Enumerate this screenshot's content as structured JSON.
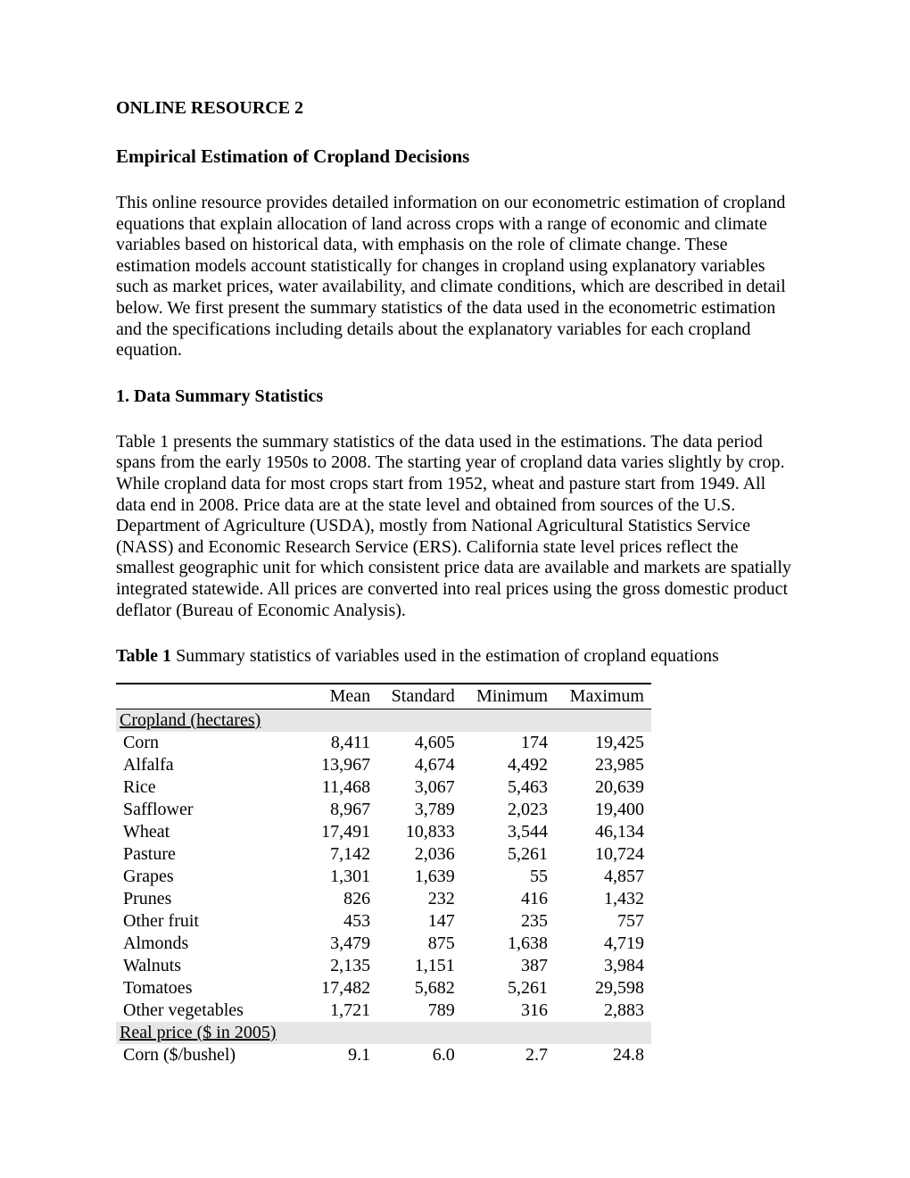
{
  "header": "ONLINE RESOURCE 2",
  "title": "Empirical Estimation of Cropland Decisions",
  "para1": "This online resource provides detailed information on our econometric estimation of cropland equations that explain allocation of land across crops with a range of economic and climate variables based on historical data, with emphasis on the role of climate change. These estimation models account statistically for changes in cropland using explanatory variables such as market prices, water availability, and climate conditions, which are described in detail below. We first present the summary statistics of the data used in the econometric estimation and the specifications including details about the explanatory variables for each cropland equation.",
  "section1_heading": "1. Data Summary Statistics",
  "para2": "Table 1 presents the summary statistics of the data used in the estimations.  The data period spans from the early 1950s to 2008. The starting year of cropland data varies slightly by crop. While cropland data for most crops start from 1952, wheat and pasture start from 1949.  All data end in 2008.  Price data are at the state level and obtained from sources of the U.S. Department of Agriculture (USDA), mostly from National Agricultural Statistics Service (NASS) and Economic Research Service (ERS).  California state level prices reflect the smallest geographic unit for which consistent price data are available and markets are spatially integrated statewide.  All prices are converted into real prices using the gross domestic product deflator (Bureau of Economic Analysis).",
  "table1": {
    "caption_bold": "Table 1",
    "caption_rest": "  Summary statistics of variables used in the estimation of cropland equations",
    "columns": [
      "",
      "Mean",
      "Standard",
      "Minimum",
      "Maximum"
    ],
    "section1_label": "Cropland (hectares)",
    "rows_section1": [
      {
        "label": "Corn",
        "mean": "8,411",
        "sd": "4,605",
        "min": "174",
        "max": "19,425"
      },
      {
        "label": "Alfalfa",
        "mean": "13,967",
        "sd": "4,674",
        "min": "4,492",
        "max": "23,985"
      },
      {
        "label": "Rice",
        "mean": "11,468",
        "sd": "3,067",
        "min": "5,463",
        "max": "20,639"
      },
      {
        "label": "Safflower",
        "mean": "8,967",
        "sd": "3,789",
        "min": "2,023",
        "max": "19,400"
      },
      {
        "label": "Wheat",
        "mean": "17,491",
        "sd": "10,833",
        "min": "3,544",
        "max": "46,134"
      },
      {
        "label": "Pasture",
        "mean": "7,142",
        "sd": "2,036",
        "min": "5,261",
        "max": "10,724"
      },
      {
        "label": "Grapes",
        "mean": "1,301",
        "sd": "1,639",
        "min": "55",
        "max": "4,857"
      },
      {
        "label": "Prunes",
        "mean": "826",
        "sd": "232",
        "min": "416",
        "max": "1,432"
      },
      {
        "label": "Other fruit",
        "mean": "453",
        "sd": "147",
        "min": "235",
        "max": "757"
      },
      {
        "label": "Almonds",
        "mean": "3,479",
        "sd": "875",
        "min": "1,638",
        "max": "4,719"
      },
      {
        "label": "Walnuts",
        "mean": "2,135",
        "sd": "1,151",
        "min": "387",
        "max": "3,984"
      },
      {
        "label": "Tomatoes",
        "mean": "17,482",
        "sd": "5,682",
        "min": "5,261",
        "max": "29,598"
      },
      {
        "label": "Other vegetables",
        "mean": "1,721",
        "sd": "789",
        "min": "316",
        "max": "2,883"
      }
    ],
    "section2_label": "Real price ($ in 2005)",
    "rows_section2": [
      {
        "label": "Corn ($/bushel)",
        "mean": "9.1",
        "sd": "6.0",
        "min": "2.7",
        "max": "24.8"
      }
    ]
  }
}
